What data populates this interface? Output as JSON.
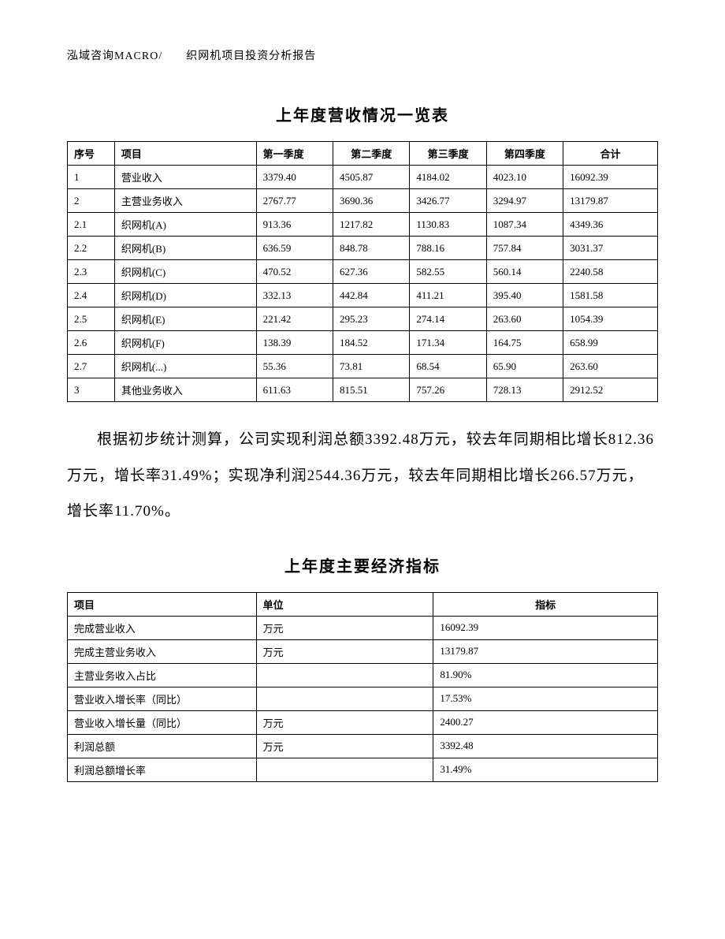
{
  "header": "泓域咨询MACRO/　　织网机项目投资分析报告",
  "revenue_table": {
    "title": "上年度营收情况一览表",
    "columns": [
      "序号",
      "项目",
      "第一季度",
      "第二季度",
      "第三季度",
      "第四季度",
      "合计"
    ],
    "rows": [
      [
        "1",
        "营业收入",
        "3379.40",
        "4505.87",
        "4184.02",
        "4023.10",
        "16092.39"
      ],
      [
        "2",
        "主营业务收入",
        "2767.77",
        "3690.36",
        "3426.77",
        "3294.97",
        "13179.87"
      ],
      [
        "2.1",
        "织网机(A)",
        "913.36",
        "1217.82",
        "1130.83",
        "1087.34",
        "4349.36"
      ],
      [
        "2.2",
        "织网机(B)",
        "636.59",
        "848.78",
        "788.16",
        "757.84",
        "3031.37"
      ],
      [
        "2.3",
        "织网机(C)",
        "470.52",
        "627.36",
        "582.55",
        "560.14",
        "2240.58"
      ],
      [
        "2.4",
        "织网机(D)",
        "332.13",
        "442.84",
        "411.21",
        "395.40",
        "1581.58"
      ],
      [
        "2.5",
        "织网机(E)",
        "221.42",
        "295.23",
        "274.14",
        "263.60",
        "1054.39"
      ],
      [
        "2.6",
        "织网机(F)",
        "138.39",
        "184.52",
        "171.34",
        "164.75",
        "658.99"
      ],
      [
        "2.7",
        "织网机(...)",
        "55.36",
        "73.81",
        "68.54",
        "65.90",
        "263.60"
      ],
      [
        "3",
        "其他业务收入",
        "611.63",
        "815.51",
        "757.26",
        "728.13",
        "2912.52"
      ]
    ]
  },
  "paragraph": "根据初步统计测算，公司实现利润总额3392.48万元，较去年同期相比增长812.36万元，增长率31.49%；实现净利润2544.36万元，较去年同期相比增长266.57万元，增长率11.70%。",
  "indicator_table": {
    "title": "上年度主要经济指标",
    "columns": [
      "项目",
      "单位",
      "指标"
    ],
    "rows": [
      [
        "完成营业收入",
        "万元",
        "16092.39"
      ],
      [
        "完成主营业务收入",
        "万元",
        "13179.87"
      ],
      [
        "主营业务收入占比",
        "",
        "81.90%"
      ],
      [
        "营业收入增长率（同比）",
        "",
        "17.53%"
      ],
      [
        "营业收入增长量（同比）",
        "万元",
        "2400.27"
      ],
      [
        "利润总额",
        "万元",
        "3392.48"
      ],
      [
        "利润总额增长率",
        "",
        "31.49%"
      ]
    ]
  }
}
